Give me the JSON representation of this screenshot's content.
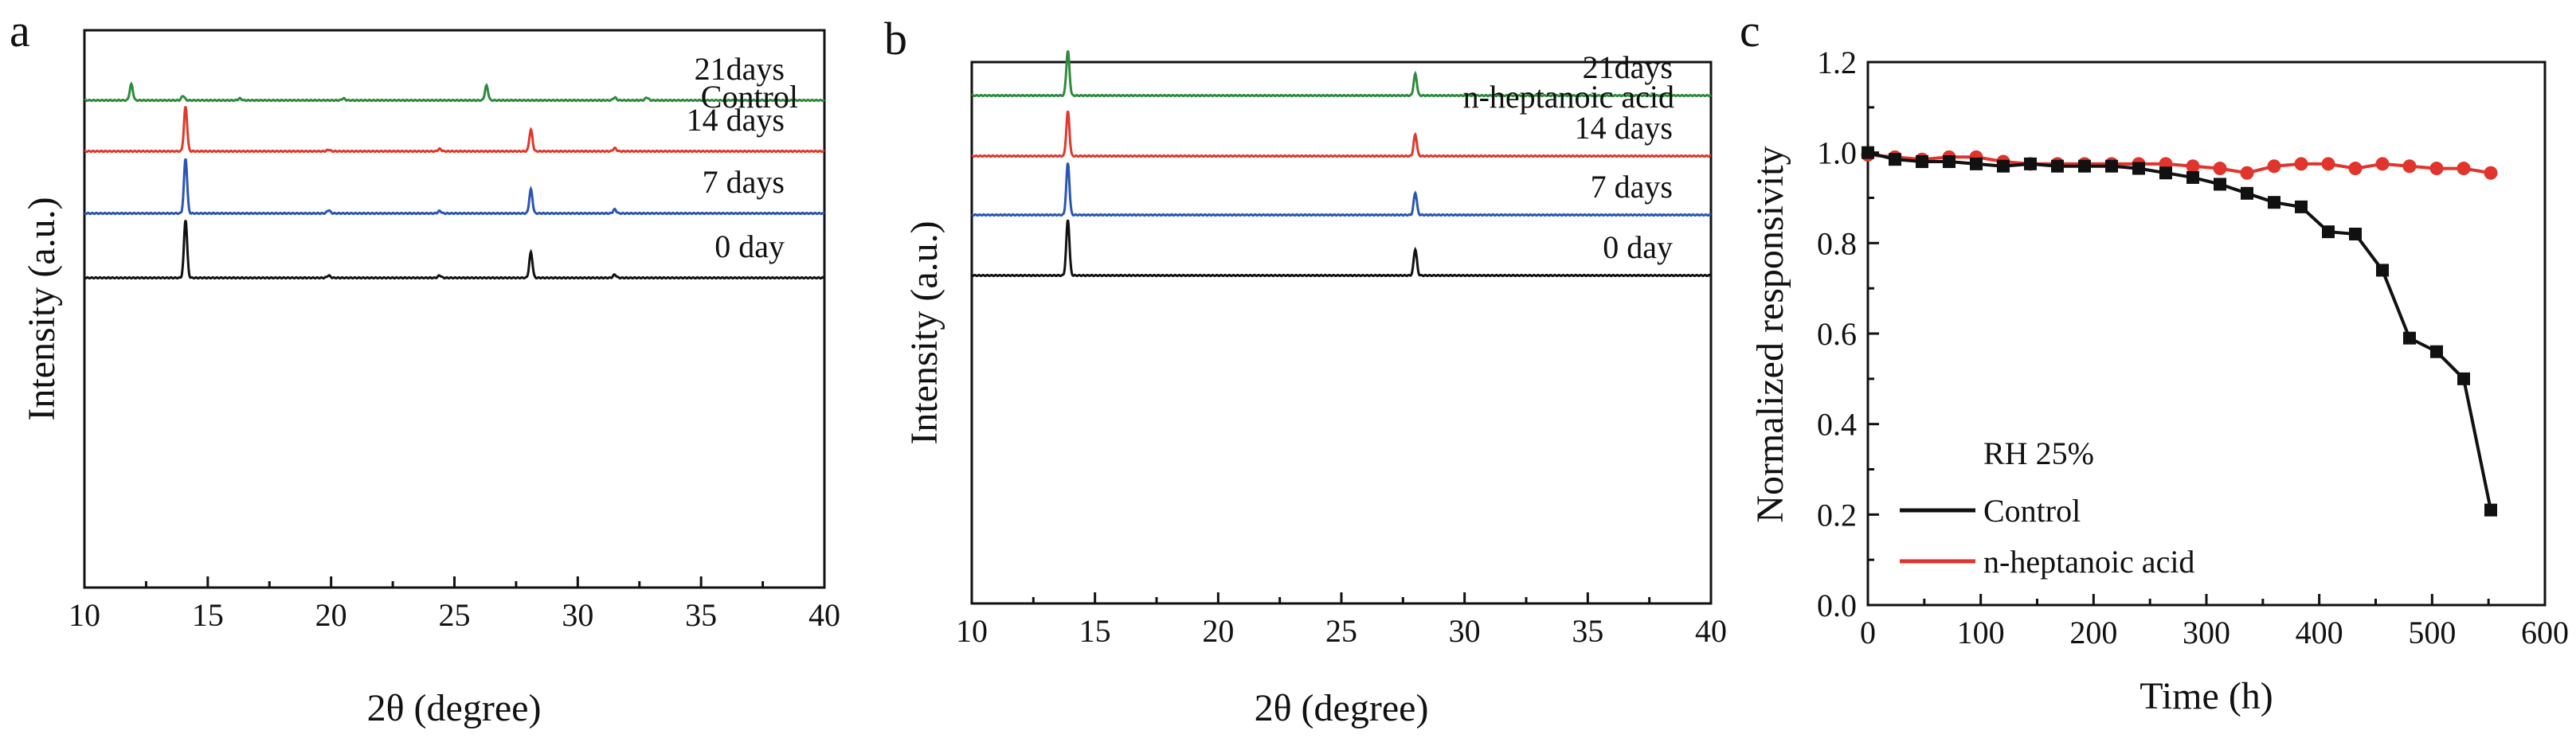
{
  "chart_data": [
    {
      "panel": "a",
      "type": "line",
      "xlabel": "2θ (degree)",
      "ylabel": "Intensity (a.u.)",
      "xlim": [
        10,
        40
      ],
      "xticks": [
        "10",
        "15",
        "20",
        "25",
        "30",
        "35",
        "40"
      ],
      "legend_title": "Control",
      "series": [
        {
          "name": "21days",
          "color": "#2e8b3e",
          "peaks": [
            [
              11.9,
              1.0
            ],
            [
              14.0,
              0.28
            ],
            [
              16.3,
              0.12
            ],
            [
              20.5,
              0.12
            ],
            [
              26.3,
              0.92
            ],
            [
              31.5,
              0.18
            ],
            [
              32.8,
              0.18
            ]
          ]
        },
        {
          "name": "14 days",
          "color": "#e0382a",
          "peaks": [
            [
              14.1,
              2.8
            ],
            [
              19.9,
              0.1
            ],
            [
              24.4,
              0.15
            ],
            [
              28.1,
              1.35
            ],
            [
              31.5,
              0.2
            ]
          ]
        },
        {
          "name": "7 days",
          "color": "#2a56b2",
          "peaks": [
            [
              14.1,
              3.45
            ],
            [
              19.9,
              0.2
            ],
            [
              24.4,
              0.15
            ],
            [
              28.1,
              1.5
            ],
            [
              31.5,
              0.25
            ]
          ]
        },
        {
          "name": "0 day",
          "color": "#111111",
          "peaks": [
            [
              14.1,
              3.65
            ],
            [
              19.9,
              0.15
            ],
            [
              24.4,
              0.15
            ],
            [
              28.1,
              1.6
            ],
            [
              31.5,
              0.2
            ]
          ]
        }
      ]
    },
    {
      "panel": "b",
      "type": "line",
      "xlabel": "2θ (degree)",
      "ylabel": "Intensity (a.u.)",
      "xlim": [
        10,
        40
      ],
      "xticks": [
        "10",
        "15",
        "20",
        "25",
        "30",
        "35",
        "40"
      ],
      "legend_title": "n-heptanoic acid",
      "series": [
        {
          "name": "21days",
          "color": "#2e8b3e",
          "peaks": [
            [
              13.9,
              2.8
            ],
            [
              28.0,
              1.35
            ]
          ]
        },
        {
          "name": "14 days",
          "color": "#e0382a",
          "peaks": [
            [
              13.9,
              2.8
            ],
            [
              28.0,
              1.35
            ]
          ]
        },
        {
          "name": "7 days",
          "color": "#2a56b2",
          "peaks": [
            [
              13.9,
              3.25
            ],
            [
              28.0,
              1.4
            ]
          ]
        },
        {
          "name": "0 day",
          "color": "#111111",
          "peaks": [
            [
              13.9,
              3.5
            ],
            [
              28.0,
              1.65
            ]
          ]
        }
      ]
    },
    {
      "panel": "c",
      "type": "line",
      "xlabel": "Time (h)",
      "ylabel": "Normalized responsivity",
      "xlim": [
        0,
        600
      ],
      "ylim": [
        0.0,
        1.2
      ],
      "xticks": [
        "0",
        "100",
        "200",
        "300",
        "400",
        "500",
        "600"
      ],
      "yticks": [
        "0.0",
        "0.2",
        "0.4",
        "0.6",
        "0.8",
        "1.0",
        "1.2"
      ],
      "legend_title": "RH 25%",
      "series": [
        {
          "name": "Control",
          "color": "#111111",
          "marker": "square",
          "x": [
            0,
            24,
            48,
            72,
            96,
            120,
            144,
            168,
            192,
            216,
            240,
            264,
            288,
            312,
            336,
            360,
            384,
            408,
            432,
            456,
            480,
            504,
            528,
            552
          ],
          "y": [
            1.0,
            0.985,
            0.98,
            0.98,
            0.975,
            0.97,
            0.975,
            0.97,
            0.97,
            0.97,
            0.965,
            0.955,
            0.945,
            0.93,
            0.91,
            0.89,
            0.88,
            0.825,
            0.82,
            0.74,
            0.59,
            0.56,
            0.5,
            0.21
          ]
        },
        {
          "name": "n-heptanoic acid",
          "color": "#e0342c",
          "marker": "circle",
          "x": [
            0,
            24,
            48,
            72,
            96,
            120,
            144,
            168,
            192,
            216,
            240,
            264,
            288,
            312,
            336,
            360,
            384,
            408,
            432,
            456,
            480,
            504,
            528,
            552
          ],
          "y": [
            0.995,
            0.99,
            0.985,
            0.99,
            0.99,
            0.98,
            0.975,
            0.975,
            0.975,
            0.975,
            0.975,
            0.975,
            0.97,
            0.965,
            0.955,
            0.97,
            0.975,
            0.975,
            0.965,
            0.975,
            0.97,
            0.965,
            0.965,
            0.955
          ]
        }
      ]
    }
  ]
}
